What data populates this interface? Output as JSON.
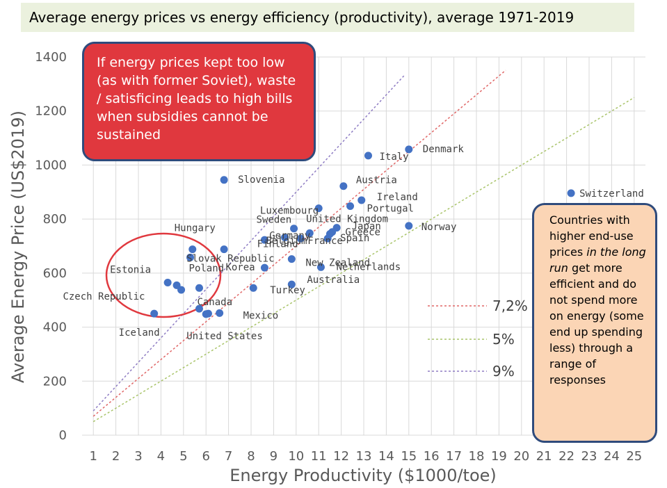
{
  "title": "Average energy prices vs energy efficiency (productivity), average 1971-2019",
  "callout_red": "If energy prices kept too low (as with former Soviet), waste / satisficing leads to high bills when subsidies cannot be sustained",
  "callout_peach": {
    "before": "Countries with higher end-use prices ",
    "italic": "in the long run",
    "after": " get more efficient and do not spend more on energy (some end up spending less) through a range of responses"
  },
  "colors": {
    "points": "#4472c4",
    "line_7_2": "#e06666",
    "line_5": "#a9c46a",
    "line_9": "#8e7cc3",
    "ellipse": "#e0383e",
    "callout_red": "#e0383e",
    "callout_peach": "#fbd5b5"
  },
  "chart_data": {
    "type": "scatter",
    "xlabel": "Energy Productivity ($1000/toe)",
    "ylabel": "Average Energy Price (US$2019)",
    "xlim": [
      0.5,
      25.5
    ],
    "ylim": [
      0,
      1400
    ],
    "xticks": [
      1,
      2,
      3,
      4,
      5,
      6,
      7,
      8,
      9,
      10,
      11,
      12,
      13,
      14,
      15,
      16,
      17,
      18,
      19,
      20,
      21,
      22,
      23,
      24,
      25
    ],
    "yticks": [
      0,
      200,
      400,
      600,
      800,
      1000,
      1200,
      1400
    ],
    "grid": true,
    "points": [
      {
        "label": "Denmark",
        "x": 15.0,
        "y": 1058
      },
      {
        "label": "Italy",
        "x": 13.2,
        "y": 1035
      },
      {
        "label": "Slovenia",
        "x": 6.8,
        "y": 945
      },
      {
        "label": "Austria",
        "x": 12.1,
        "y": 922
      },
      {
        "label": "Switzerland",
        "x": 22.2,
        "y": 896
      },
      {
        "label": "Ireland",
        "x": 12.9,
        "y": 870
      },
      {
        "label": "Portugal",
        "x": 12.4,
        "y": 848
      },
      {
        "label": "Luxembourg",
        "x": 11.0,
        "y": 840
      },
      {
        "label": "Norway",
        "x": 15.0,
        "y": 775
      },
      {
        "label": "United Kingdom",
        "x": 11.8,
        "y": 768
      },
      {
        "label": "Sweden",
        "x": 9.9,
        "y": 765
      },
      {
        "label": "Japan",
        "x": 11.6,
        "y": 752
      },
      {
        "label": "Greece",
        "x": 11.5,
        "y": 745
      },
      {
        "label": "Germany",
        "x": 10.6,
        "y": 748
      },
      {
        "label": "Spain",
        "x": 11.4,
        "y": 728
      },
      {
        "label": "France",
        "x": 10.2,
        "y": 728
      },
      {
        "label": "Finland",
        "x": 9.5,
        "y": 732
      },
      {
        "label": "Hungary",
        "x": 5.4,
        "y": 688
      },
      {
        "label": "Slovak Republic",
        "x": 6.8,
        "y": 688
      },
      {
        "label": "Belgium",
        "x": 8.6,
        "y": 723
      },
      {
        "label": "Netherlands",
        "x": 11.1,
        "y": 622
      },
      {
        "label": "New Zealand",
        "x": 9.8,
        "y": 652
      },
      {
        "label": "Poland",
        "x": 5.3,
        "y": 658
      },
      {
        "label": "Estonia",
        "x": 4.3,
        "y": 565
      },
      {
        "label": "Korea",
        "x": 8.6,
        "y": 620
      },
      {
        "label": "Turkey",
        "x": 8.1,
        "y": 545
      },
      {
        "label": "Australia",
        "x": 9.8,
        "y": 558
      },
      {
        "label": "",
        "x": 4.7,
        "y": 555
      },
      {
        "label": "",
        "x": 4.9,
        "y": 538
      },
      {
        "label": "",
        "x": 5.7,
        "y": 545
      },
      {
        "label": "Czech Republic",
        "x": 5.7,
        "y": 468
      },
      {
        "label": "Canada",
        "x": 6.1,
        "y": 450
      },
      {
        "label": "Mexico",
        "x": 6.6,
        "y": 452
      },
      {
        "label": "Iceland",
        "x": 3.7,
        "y": 450
      },
      {
        "label": "United States",
        "x": 6.0,
        "y": 448
      }
    ],
    "trend_lines": [
      {
        "name": "7,2%"
      },
      {
        "name": "5%"
      },
      {
        "name": "9%"
      }
    ]
  }
}
